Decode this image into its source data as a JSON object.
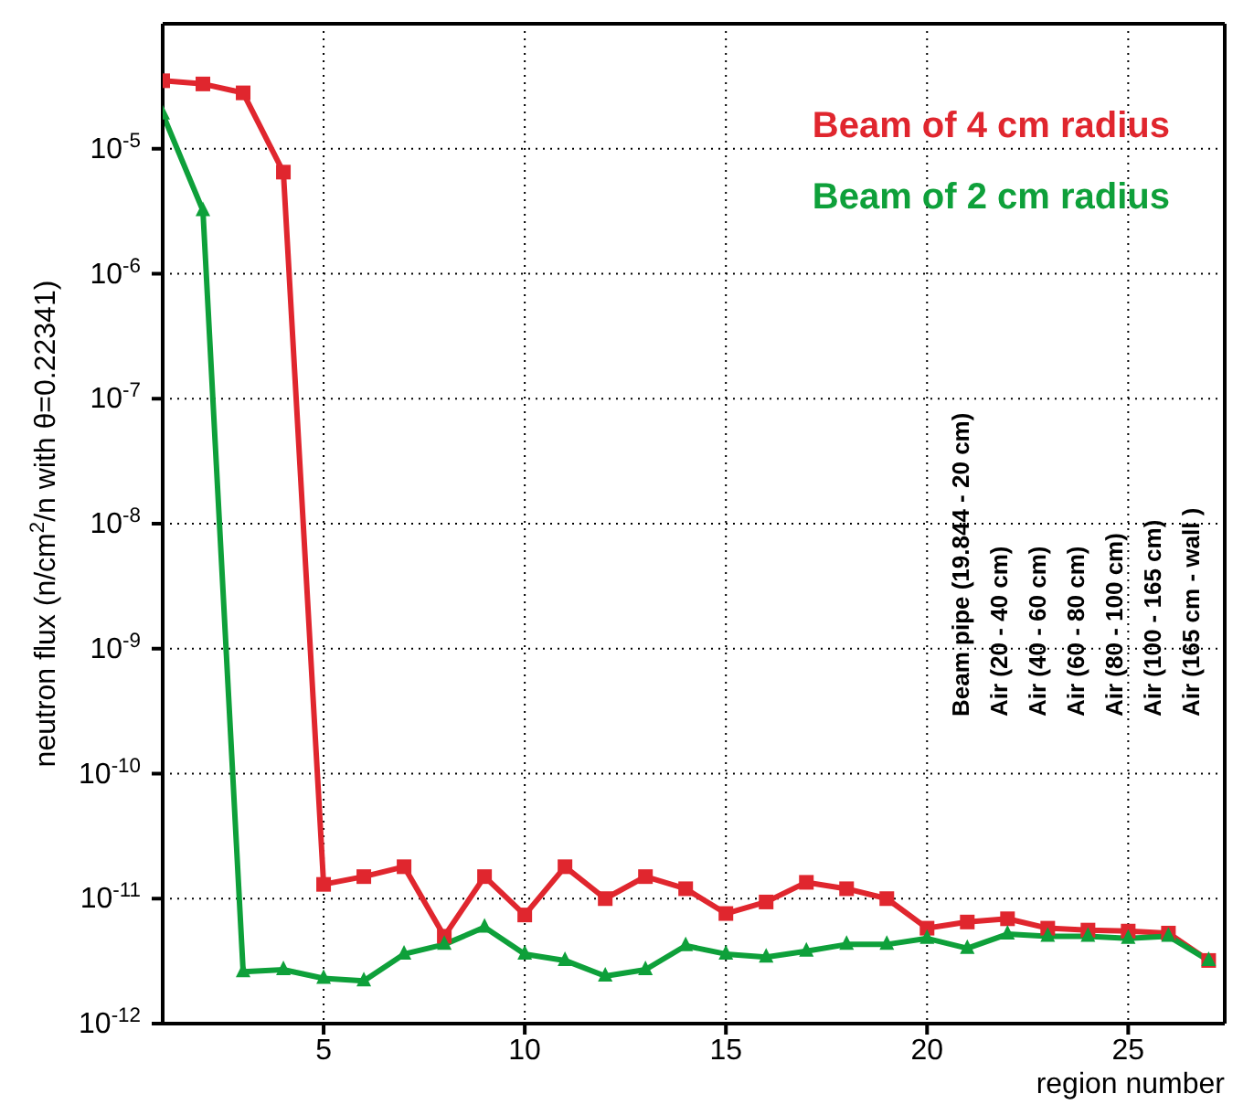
{
  "chart_data": {
    "type": "line",
    "xlabel": "region number",
    "ylabel": "neutron flux (n/cm$^{2}$/n with θ=0.22341)",
    "x": [
      1,
      2,
      3,
      4,
      5,
      6,
      7,
      8,
      9,
      10,
      11,
      12,
      13,
      14,
      15,
      16,
      17,
      18,
      19,
      20,
      21,
      22,
      23,
      24,
      25,
      26,
      27
    ],
    "series": [
      {
        "name": "Beam of 4 cm radius",
        "color": "#e0262e",
        "marker": "square",
        "values": [
          3.5e-05,
          3.3e-05,
          2.8e-05,
          6.5e-06,
          1.3e-11,
          1.5e-11,
          1.8e-11,
          5e-12,
          1.5e-11,
          7.4e-12,
          1.8e-11,
          1e-11,
          1.5e-11,
          1.2e-11,
          7.6e-12,
          9.4e-12,
          1.35e-11,
          1.2e-11,
          1e-11,
          5.8e-12,
          6.5e-12,
          6.9e-12,
          5.8e-12,
          5.6e-12,
          5.5e-12,
          5.3e-12,
          3.2e-12
        ]
      },
      {
        "name": "Beam of 2 cm radius",
        "color": "#0ea03a",
        "marker": "triangle",
        "values": [
          1.9e-05,
          3.2e-06,
          2.6e-12,
          2.7e-12,
          2.3e-12,
          2.2e-12,
          3.6e-12,
          4.3e-12,
          5.9e-12,
          3.6e-12,
          3.2e-12,
          2.4e-12,
          2.7e-12,
          4.2e-12,
          3.6e-12,
          3.4e-12,
          3.8e-12,
          4.3e-12,
          4.3e-12,
          4.8e-12,
          4e-12,
          5.2e-12,
          5e-12,
          5e-12,
          4.8e-12,
          5e-12,
          3.2e-12
        ]
      }
    ],
    "xlim": [
      1,
      27.4
    ],
    "xticks": [
      5,
      10,
      15,
      20,
      25
    ],
    "ylim": [
      1e-12,
      0.0001
    ],
    "log": true,
    "yticks": [
      {
        "value": 1e-12,
        "label": "10$^{-12}$"
      },
      {
        "value": 1e-11,
        "label": "10$^{-11}$"
      },
      {
        "value": 1e-10,
        "label": "10$^{-10}$"
      },
      {
        "value": 1e-09,
        "label": "10$^{-9}$"
      },
      {
        "value": 1e-08,
        "label": "10$^{-8}$"
      },
      {
        "value": 1e-07,
        "label": "10$^{-7}$"
      },
      {
        "value": 1e-06,
        "label": "10$^{-6}$"
      },
      {
        "value": 1e-05,
        "label": "10$^{-5}$"
      }
    ],
    "grid": true,
    "legend": "top right",
    "line_style": "solid",
    "annotations": [
      "Beam pipe (19.844 - 20 cm)",
      "Air (20 - 40 cm)",
      "Air (40 - 60 cm)",
      "Air (60 - 80 cm)",
      "Air (80 - 100 cm)",
      "Air (100 - 165 cm)",
      "Air (165 cm - wall )"
    ]
  }
}
